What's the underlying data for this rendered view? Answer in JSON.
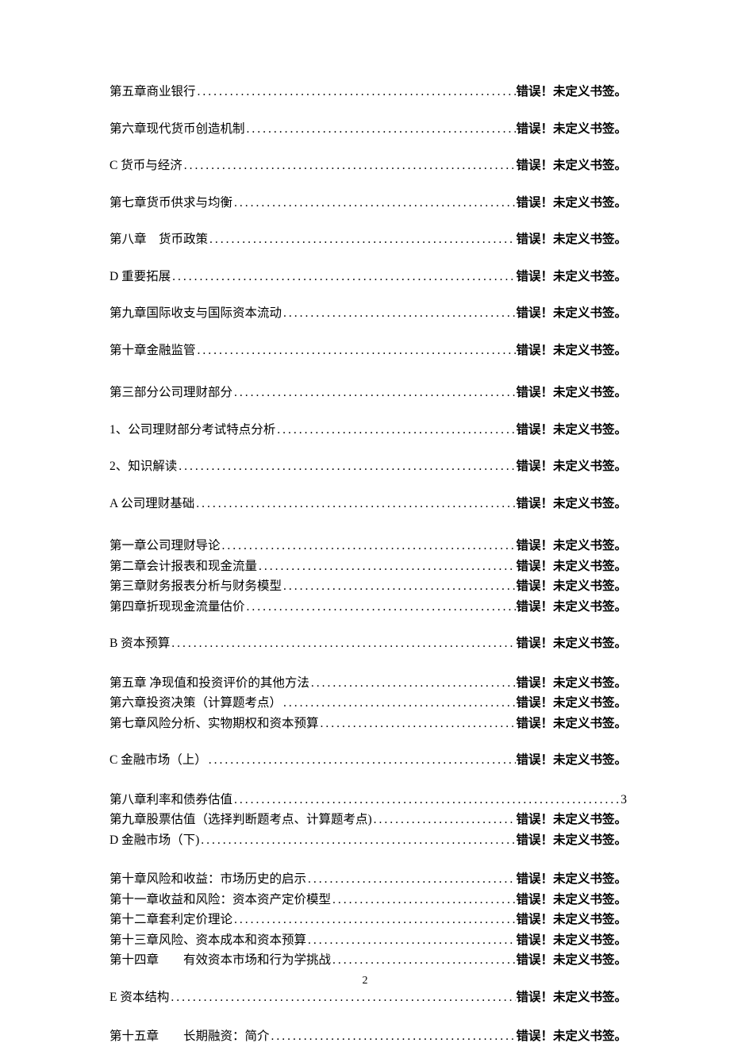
{
  "error_text": "错误！未定义书签。",
  "page_number": "2",
  "entries": [
    {
      "label": "第五章商业银行",
      "page": "错误！未定义书签。",
      "gap": "gap-large",
      "bold_page": true
    },
    {
      "label": "第六章现代货币创造机制",
      "page": "错误！未定义书签。",
      "gap": "gap-large",
      "bold_page": true
    },
    {
      "label": "C 货币与经济",
      "page": "错误！未定义书签。",
      "gap": "gap-large",
      "bold_page": true
    },
    {
      "label": "第七章货币供求与均衡",
      "page": "错误！未定义书签。",
      "gap": "gap-large",
      "bold_page": true
    },
    {
      "label": "第八章　货币政策",
      "page": "错误！未定义书签。",
      "gap": "gap-large",
      "bold_page": true
    },
    {
      "label": "D 重要拓展",
      "page": "错误！未定义书签。",
      "gap": "gap-large",
      "bold_page": true
    },
    {
      "label": "第九章国际收支与国际资本流动",
      "page": "错误！未定义书签。",
      "gap": "gap-large",
      "bold_page": true
    },
    {
      "label": "第十章金融监管",
      "page": "错误！未定义书签。",
      "gap": "gap-section",
      "bold_page": true
    },
    {
      "label": "第三部分公司理财部分",
      "page": "错误！未定义书签。",
      "gap": "gap-large",
      "bold_page": true
    },
    {
      "label": "1、公司理财部分考试特点分析",
      "page": "错误！未定义书签。",
      "gap": "gap-large",
      "bold_page": true
    },
    {
      "label": "2、知识解读",
      "page": "错误！未定义书签。",
      "gap": "gap-large",
      "bold_page": true
    },
    {
      "label": "A 公司理财基础",
      "page": "错误！未定义书签。",
      "gap": "gap-section",
      "bold_page": true
    },
    {
      "label": "第一章公司理财导论",
      "page": "错误！未定义书签。",
      "gap": "gap-small",
      "bold_page": true
    },
    {
      "label": "第二章会计报表和现金流量",
      "page": "错误！未定义书签。",
      "gap": "gap-small",
      "bold_page": true
    },
    {
      "label": "第三章财务报表分析与财务模型",
      "page": "错误！未定义书签。",
      "gap": "gap-small",
      "bold_page": true
    },
    {
      "label": "第四章折现现金流量估价",
      "page": "错误！未定义书签。",
      "gap": "gap-large",
      "bold_page": true
    },
    {
      "label": "B 资本预算",
      "page": "错误！未定义书签。",
      "gap": "gap-block",
      "bold_page": true
    },
    {
      "label": "第五章  净现值和投资评价的其他方法",
      "page": "错误！未定义书签。",
      "gap": "gap-small",
      "bold_page": true
    },
    {
      "label": "第六章投资决策（计算题考点）",
      "page": "错误！未定义书签。",
      "gap": "gap-small",
      "bold_page": true
    },
    {
      "label": "第七章风险分析、实物期权和资本预算",
      "page": "错误！未定义书签。",
      "gap": "gap-large",
      "bold_page": true
    },
    {
      "label": "C 金融市场（上）",
      "page": "错误！未定义书签。",
      "gap": "gap-block",
      "bold_page": true
    },
    {
      "label": "第八章利率和债券估值",
      "page": "3",
      "gap": "gap-small",
      "bold_page": false
    },
    {
      "label": "第九章股票估值（选择判断题考点、计算题考点)",
      "page": "错误！未定义书签。",
      "gap": "gap-small",
      "bold_page": true
    },
    {
      "label": "D 金融市场（下)",
      "page": "错误！未定义书签。",
      "gap": "gap-block",
      "bold_page": true
    },
    {
      "label": "第十章风险和收益：市场历史的启示",
      "page": "错误！未定义书签。",
      "gap": "gap-small",
      "bold_page": true
    },
    {
      "label": "第十一章收益和风险：资本资产定价模型",
      "page": "错误！未定义书签。",
      "gap": "gap-small",
      "bold_page": true
    },
    {
      "label": "第十二章套利定价理论",
      "page": "错误！未定义书签。",
      "gap": "gap-small",
      "bold_page": true
    },
    {
      "label": "第十三章风险、资本成本和资本预算",
      "page": "错误！未定义书签。",
      "gap": "gap-small",
      "bold_page": true
    },
    {
      "label": "第十四章　　有效资本市场和行为学挑战",
      "page": "错误！未定义书签。",
      "gap": "gap-large",
      "bold_page": true
    },
    {
      "label": "E 资本结构",
      "page": "错误！未定义书签。",
      "gap": "gap-block",
      "bold_page": true
    },
    {
      "label": "第十五章　　长期融资：简介",
      "page": "错误！未定义书签。",
      "gap": "gap-small",
      "bold_page": true
    }
  ]
}
